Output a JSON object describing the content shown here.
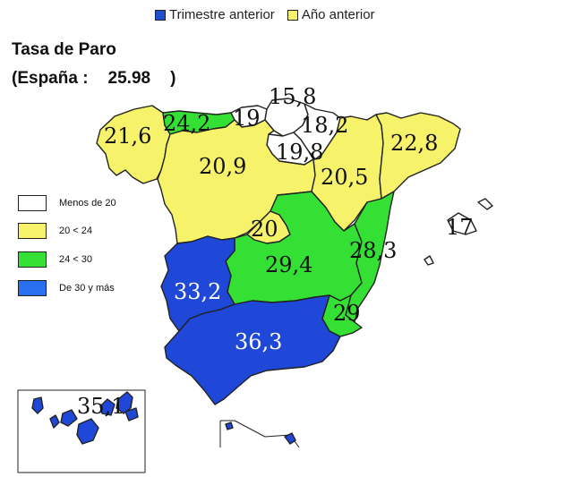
{
  "legend_top": {
    "items": [
      {
        "label": "Trimestre anterior",
        "color": "#1f4fd1"
      },
      {
        "label": "Año anterior",
        "color": "#f6f26a"
      }
    ]
  },
  "title": "Tasa de Paro",
  "subtitle": {
    "prefix": "(España :",
    "value": "25.98",
    "suffix": ")"
  },
  "legend_side": {
    "items": [
      {
        "label": "Menos de 20",
        "color": "#ffffff"
      },
      {
        "label": "20  < 24",
        "color": "#f6f26a"
      },
      {
        "label": "24 < 30",
        "color": "#33e033"
      },
      {
        "label": "De 30 y más",
        "color": "#2a6ff0"
      }
    ]
  },
  "colors": {
    "white": "#ffffff",
    "yellow": "#f6f26a",
    "green": "#33e033",
    "blue": "#1f47d8",
    "outline": "#222222"
  },
  "regions": {
    "galicia": "21,6",
    "asturias": "24,2",
    "cantabria": "19",
    "pais_vasco": "15,8",
    "navarra": "18,2",
    "la_rioja": "19,8",
    "aragon": "20,5",
    "cataluna": "22,8",
    "castilla_leon": "20,9",
    "madrid": "20",
    "castilla_la_mancha": "29,4",
    "valencia": "28,3",
    "murcia": "29",
    "extremadura": "33,2",
    "andalucia": "36,3",
    "baleares": "17",
    "canarias": "35,1"
  }
}
